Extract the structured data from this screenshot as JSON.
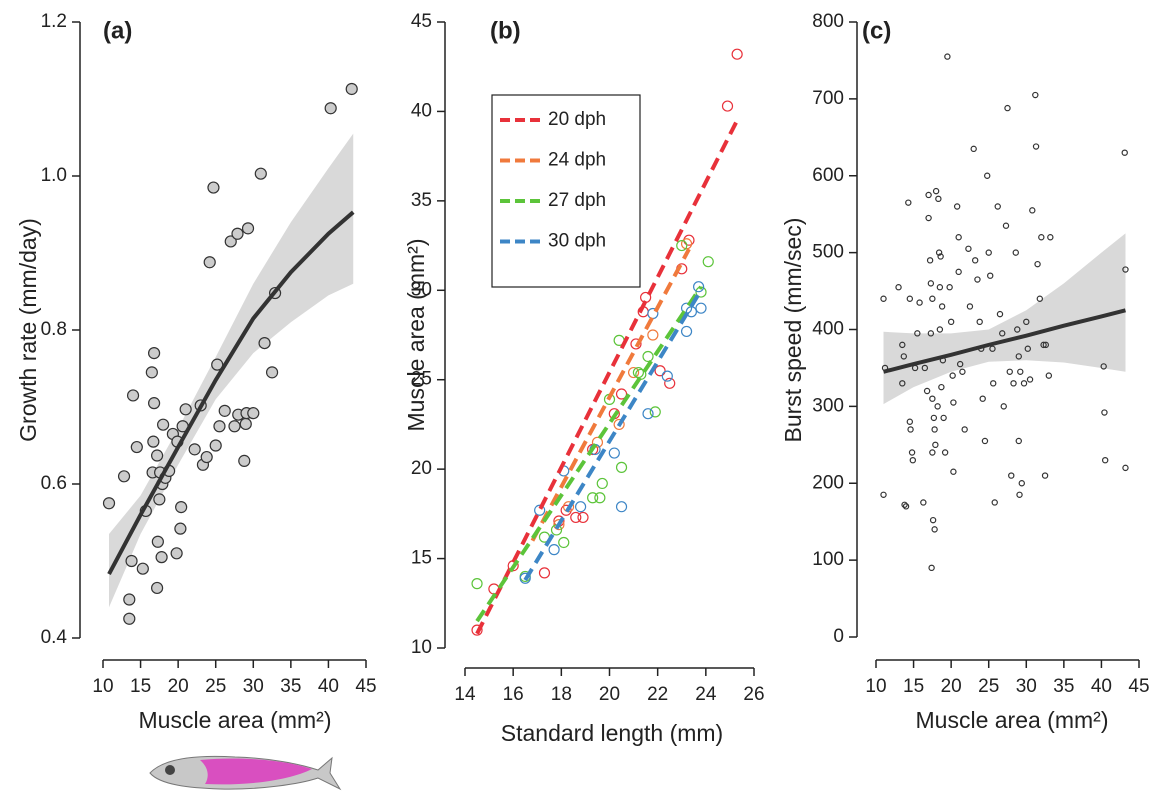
{
  "chart_data": [
    {
      "type": "scatter",
      "label": "(a)",
      "x_label": "Muscle area (mm²)",
      "y_label": "Growth rate (mm/day)",
      "xlim": [
        10,
        45
      ],
      "ylim": [
        0.4,
        1.2
      ],
      "xticks": [
        10,
        15,
        20,
        25,
        30,
        35,
        40,
        45
      ],
      "yticks": [
        0.4,
        0.6,
        0.8,
        {
          "value": 1,
          "label": "1.0"
        },
        1.2
      ],
      "series": [
        {
          "color": "#333333",
          "fill": "#cccccc",
          "x": [
            10.8,
            12.8,
            13.5,
            13.5,
            13.8,
            14,
            14.5,
            15.3,
            15.7,
            16.5,
            16.8,
            16.8,
            16.7,
            16.6,
            17.2,
            17.3,
            17.2,
            17.5,
            17.6,
            17.8,
            17.9,
            18,
            18.3,
            18.8,
            19.3,
            19.8,
            19.9,
            20.3,
            20.4,
            20.6,
            21,
            22.2,
            23,
            23.3,
            23.8,
            24.2,
            24.7,
            25,
            25.2,
            25.5,
            26.2,
            27,
            27.5,
            27.9,
            28,
            28.8,
            29,
            29.1,
            29.3,
            30,
            31,
            31.5,
            32.5,
            32.9,
            40.3,
            43.1
          ],
          "values": [
            0.575,
            0.61,
            0.45,
            0.425,
            0.5,
            0.715,
            0.648,
            0.49,
            0.565,
            0.745,
            0.77,
            0.705,
            0.655,
            0.615,
            0.637,
            0.525,
            0.465,
            0.58,
            0.615,
            0.505,
            0.6,
            0.677,
            0.608,
            0.617,
            0.665,
            0.51,
            0.655,
            0.542,
            0.57,
            0.675,
            0.697,
            0.645,
            0.702,
            0.625,
            0.635,
            0.888,
            0.985,
            0.65,
            0.755,
            0.675,
            0.695,
            0.915,
            0.675,
            0.925,
            0.69,
            0.63,
            0.678,
            0.692,
            0.932,
            0.692,
            1.003,
            0.783,
            0.745,
            0.848,
            1.088,
            1.113
          ]
        }
      ],
      "fit": {
        "color": "#333333",
        "band_color": "#d9d9d9",
        "x": [
          10.8,
          15,
          20,
          25,
          30,
          35,
          40,
          43.3
        ],
        "y": [
          0.483,
          0.56,
          0.648,
          0.735,
          0.815,
          0.875,
          0.925,
          0.953
        ],
        "lower": [
          0.44,
          0.535,
          0.625,
          0.71,
          0.77,
          0.81,
          0.845,
          0.86
        ],
        "upper": [
          0.535,
          0.585,
          0.672,
          0.765,
          0.86,
          0.94,
          1.01,
          1.055
        ]
      }
    },
    {
      "type": "scatter",
      "label": "(b)",
      "x_label": "Standard length (mm)",
      "y_label": "Muscle area (mm²)",
      "xlim": [
        14,
        26
      ],
      "ylim": [
        10,
        45
      ],
      "xticks": [
        14,
        16,
        18,
        20,
        22,
        24,
        26
      ],
      "yticks": [
        10,
        15,
        20,
        25,
        30,
        35,
        40,
        45
      ],
      "legend": "upper left",
      "series": [
        {
          "name": "20 dph",
          "color": "#e8313a",
          "fill": "none",
          "x": [
            14.5,
            15.2,
            16,
            17.3,
            17.9,
            18.2,
            18.6,
            18.9,
            19.3,
            20.2,
            20.5,
            21.1,
            21.4,
            21.5,
            22.1,
            22.5,
            23,
            23.3,
            24.9,
            25.3
          ],
          "values": [
            11,
            13.3,
            14.6,
            14.2,
            17.1,
            17.7,
            17.3,
            17.3,
            21.1,
            23.1,
            24.2,
            27,
            28.8,
            29.6,
            25.5,
            24.8,
            31.2,
            32.8,
            40.3,
            43.2
          ],
          "fit": {
            "x": [
              14.5,
              25.3
            ],
            "y": [
              10.8,
              39.5
            ]
          }
        },
        {
          "name": "24 dph",
          "color": "#f07a3c",
          "fill": "none",
          "x": [
            17.9,
            18.3,
            19.5,
            20.4,
            21,
            21.8,
            23.2
          ],
          "values": [
            16.9,
            17.9,
            21.5,
            22.5,
            25.4,
            27.5,
            32.6
          ],
          "fit": {
            "x": [
              16.8,
              23.3
            ],
            "y": [
              16,
              32.3
            ]
          }
        },
        {
          "name": "27 dph",
          "color": "#5cc43a",
          "fill": "none",
          "x": [
            14.5,
            16.5,
            17.3,
            17.8,
            18.1,
            19.3,
            19.6,
            19.7,
            20,
            20.4,
            20.5,
            21.2,
            21.6,
            21.9,
            23,
            23.8,
            24.1,
            21.3
          ],
          "values": [
            13.6,
            14,
            16.2,
            16.6,
            15.9,
            18.4,
            18.4,
            19.2,
            23.9,
            27.2,
            20.1,
            25.4,
            26.3,
            23.2,
            32.5,
            29.9,
            31.6,
            25.3
          ],
          "fit": {
            "x": [
              14.5,
              23.8
            ],
            "y": [
              11.5,
              30.2
            ]
          }
        },
        {
          "name": "30 dph",
          "color": "#3d86c6",
          "fill": "none",
          "x": [
            16.5,
            17.1,
            17.7,
            18.1,
            18.8,
            19.4,
            20.2,
            20.5,
            21.6,
            21.8,
            22.4,
            23.2,
            23.2,
            23.4,
            23.8,
            23.7
          ],
          "values": [
            13.9,
            17.7,
            15.5,
            19.9,
            17.9,
            21.1,
            20.9,
            17.9,
            23.1,
            28.7,
            25.2,
            27.7,
            29,
            28.8,
            29,
            30.2
          ],
          "fit": {
            "x": [
              16.5,
              23.8
            ],
            "y": [
              13.8,
              30
            ]
          }
        }
      ]
    },
    {
      "type": "scatter",
      "label": "(c)",
      "x_label": "Muscle area (mm²)",
      "y_label": "Burst speed (mm/sec)",
      "xlim": [
        10,
        45
      ],
      "ylim": [
        0,
        800
      ],
      "xticks": [
        10,
        15,
        20,
        25,
        30,
        35,
        40,
        45
      ],
      "yticks": [
        0,
        100,
        200,
        300,
        400,
        500,
        600,
        700,
        800
      ],
      "series": [
        {
          "color": "#333333",
          "fill": "none",
          "x": [
            11,
            11,
            11.2,
            13,
            13.5,
            13.5,
            13.7,
            13.8,
            14,
            14.3,
            14.5,
            14.5,
            14.6,
            14.8,
            14.9,
            15.2,
            15.5,
            15.8,
            16.3,
            16.5,
            16.8,
            17,
            17,
            17.2,
            17.3,
            17.5,
            17.3,
            17.5,
            17.7,
            17.8,
            17.9,
            17.5,
            17.6,
            17.8,
            17.4,
            18,
            18.3,
            18.4,
            18.6,
            18.5,
            18.8,
            18.5,
            18.9,
            18.7,
            18.2,
            19,
            19.2,
            19.5,
            19.8,
            20,
            20.2,
            20.3,
            20.3,
            20.8,
            21,
            21,
            21.2,
            21.5,
            21.8,
            22.3,
            22.5,
            23,
            23.2,
            23.5,
            23.8,
            24,
            24.2,
            24.5,
            24.8,
            25,
            25.2,
            25.5,
            25.6,
            25.8,
            26.2,
            26.5,
            26.8,
            27,
            27.3,
            27.5,
            27.8,
            28,
            28.3,
            28.6,
            28.8,
            29,
            29.2,
            29,
            29.1,
            29.4,
            29.7,
            30,
            30.2,
            30.5,
            30.8,
            31.2,
            31.3,
            31.5,
            31.8,
            32,
            32.3,
            32.5,
            32.6,
            33,
            33.2,
            40.3,
            40.4,
            40.5,
            43.1,
            43.2,
            43.2
          ],
          "values": [
            440,
            185,
            350,
            455,
            380,
            330,
            365,
            172,
            170,
            565,
            440,
            280,
            270,
            240,
            230,
            350,
            395,
            435,
            175,
            350,
            320,
            575,
            545,
            490,
            460,
            440,
            395,
            310,
            285,
            270,
            250,
            240,
            152,
            140,
            90,
            580,
            570,
            500,
            495,
            455,
            430,
            400,
            360,
            325,
            300,
            285,
            240,
            755,
            455,
            410,
            340,
            305,
            215,
            560,
            520,
            475,
            355,
            345,
            270,
            505,
            430,
            635,
            490,
            465,
            410,
            375,
            310,
            255,
            600,
            500,
            470,
            375,
            330,
            175,
            560,
            420,
            395,
            300,
            535,
            688,
            345,
            210,
            330,
            500,
            400,
            365,
            345,
            255,
            185,
            200,
            330,
            410,
            375,
            335,
            555,
            705,
            638,
            485,
            440,
            520,
            380,
            210,
            380,
            340,
            520,
            352,
            292,
            230,
            630,
            478,
            220
          ]
        }
      ],
      "fit": {
        "color": "#333333",
        "band_color": "#d9d9d9",
        "x": [
          11,
          15,
          20,
          25,
          30,
          35,
          40,
          43.2
        ],
        "y": [
          345,
          355,
          367,
          380,
          392,
          405,
          417,
          425
        ],
        "lower": [
          303,
          325,
          345,
          358,
          360,
          357,
          350,
          345
        ],
        "upper": [
          397,
          395,
          395,
          400,
          425,
          460,
          500,
          525
        ]
      }
    }
  ]
}
